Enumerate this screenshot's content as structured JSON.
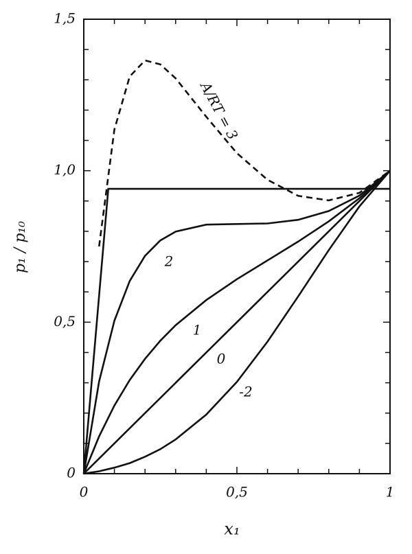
{
  "chart_data": {
    "type": "line",
    "xlabel": "x₁",
    "ylabel": "p₁ / p₁₀",
    "xlim": [
      0,
      1
    ],
    "ylim": [
      0,
      1.5
    ],
    "xticks": [
      {
        "value": 0,
        "label": "0"
      },
      {
        "value": 0.5,
        "label": "0,5"
      },
      {
        "value": 1,
        "label": "1"
      }
    ],
    "yticks": [
      {
        "value": 0,
        "label": "0"
      },
      {
        "value": 0.5,
        "label": "0,5"
      },
      {
        "value": 1,
        "label": "1,0"
      },
      {
        "value": 1.5,
        "label": "1,5"
      }
    ],
    "xminorticks": [
      0.1,
      0.2,
      0.3,
      0.4,
      0.6,
      0.7,
      0.8,
      0.9
    ],
    "yminorticks": [
      0.1,
      0.2,
      0.3,
      0.4,
      0.6,
      0.7,
      0.8,
      0.9,
      1.1,
      1.2,
      1.3,
      1.4
    ],
    "color": "#111111",
    "series": [
      {
        "name": "-2",
        "x": [
          0,
          0.05,
          0.1,
          0.15,
          0.2,
          0.25,
          0.3,
          0.4,
          0.5,
          0.6,
          0.7,
          0.8,
          0.9,
          1
        ],
        "values": [
          0,
          0.008,
          0.02,
          0.035,
          0.056,
          0.081,
          0.113,
          0.195,
          0.303,
          0.436,
          0.585,
          0.738,
          0.882,
          1
        ]
      },
      {
        "name": "0",
        "x": [
          0,
          1
        ],
        "values": [
          0,
          1
        ]
      },
      {
        "name": "1",
        "x": [
          0,
          0.05,
          0.1,
          0.15,
          0.2,
          0.25,
          0.3,
          0.4,
          0.5,
          0.6,
          0.7,
          0.8,
          0.9,
          1
        ],
        "values": [
          0,
          0.123,
          0.225,
          0.309,
          0.379,
          0.439,
          0.49,
          0.573,
          0.642,
          0.704,
          0.766,
          0.833,
          0.909,
          1
        ]
      },
      {
        "name": "2",
        "x": [
          0,
          0.05,
          0.1,
          0.15,
          0.2,
          0.25,
          0.3,
          0.4,
          0.5,
          0.6,
          0.7,
          0.8,
          0.9,
          1
        ],
        "values": [
          0,
          0.304,
          0.505,
          0.636,
          0.719,
          0.77,
          0.799,
          0.822,
          0.824,
          0.826,
          0.838,
          0.867,
          0.918,
          1
        ]
      },
      {
        "name": "A/RT = 3",
        "dashed": true,
        "x": [
          0.05,
          0.1,
          0.15,
          0.2,
          0.25,
          0.3,
          0.4,
          0.5,
          0.6,
          0.7,
          0.8,
          0.9,
          1
        ],
        "values": [
          0.75,
          1.136,
          1.311,
          1.364,
          1.351,
          1.305,
          1.178,
          1.058,
          0.97,
          0.917,
          0.902,
          0.927,
          1
        ]
      },
      {
        "x": [
          0,
          0.08,
          1
        ],
        "values": [
          0,
          0.94,
          0.94
        ]
      }
    ]
  }
}
